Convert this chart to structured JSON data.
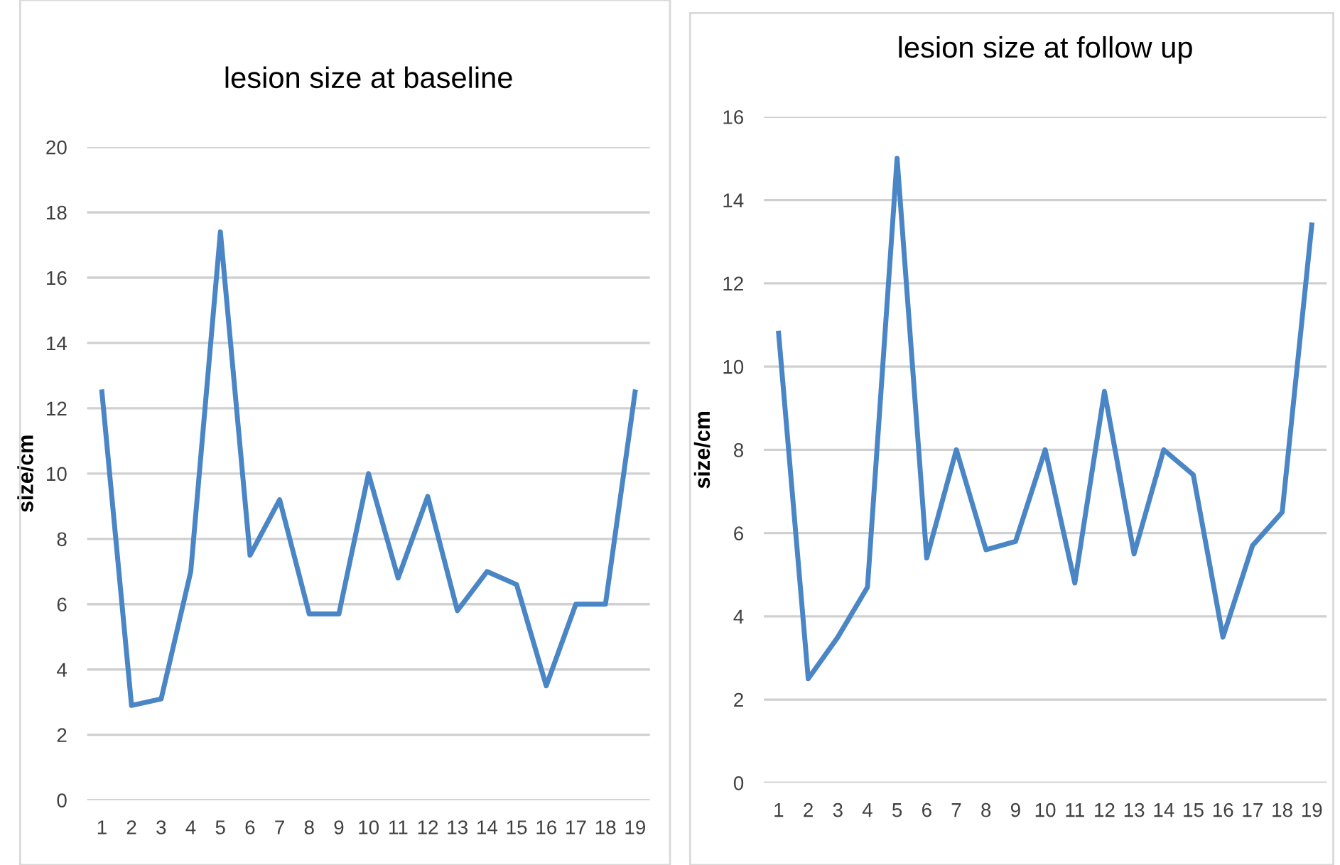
{
  "chart_data": [
    {
      "type": "line",
      "title": "lesion size at baseline",
      "ylabel": "size/cm",
      "categories": [
        "1",
        "2",
        "3",
        "4",
        "5",
        "6",
        "7",
        "8",
        "9",
        "10",
        "11",
        "12",
        "13",
        "14",
        "15",
        "16",
        "17",
        "18",
        "19"
      ],
      "series": [
        {
          "color": "#4a86c6",
          "values": [
            12.5,
            2.9,
            3.1,
            7.0,
            17.4,
            7.5,
            9.2,
            5.7,
            5.7,
            10.0,
            6.8,
            9.3,
            5.8,
            7.0,
            6.6,
            3.5,
            6.0,
            6.0,
            12.5
          ]
        }
      ],
      "ylim": [
        0,
        20
      ],
      "yticks": [
        0,
        2,
        4,
        6,
        8,
        10,
        12,
        14,
        16,
        18,
        20
      ],
      "grid": "y",
      "legend": false
    },
    {
      "type": "line",
      "title": "lesion size at follow up",
      "ylabel": "size/cm",
      "categories": [
        "1",
        "2",
        "3",
        "4",
        "5",
        "6",
        "7",
        "8",
        "9",
        "10",
        "11",
        "12",
        "13",
        "14",
        "15",
        "16",
        "17",
        "18",
        "19"
      ],
      "series": [
        {
          "color": "#4a86c6",
          "values": [
            10.8,
            2.5,
            3.5,
            4.7,
            15.0,
            5.4,
            8.0,
            5.6,
            5.8,
            8.0,
            4.8,
            9.4,
            5.5,
            8.0,
            7.4,
            3.5,
            5.7,
            6.5,
            13.4
          ]
        }
      ],
      "ylim": [
        0,
        16
      ],
      "yticks": [
        0,
        2,
        4,
        6,
        8,
        10,
        12,
        14,
        16
      ],
      "grid": "y",
      "legend": false
    }
  ]
}
